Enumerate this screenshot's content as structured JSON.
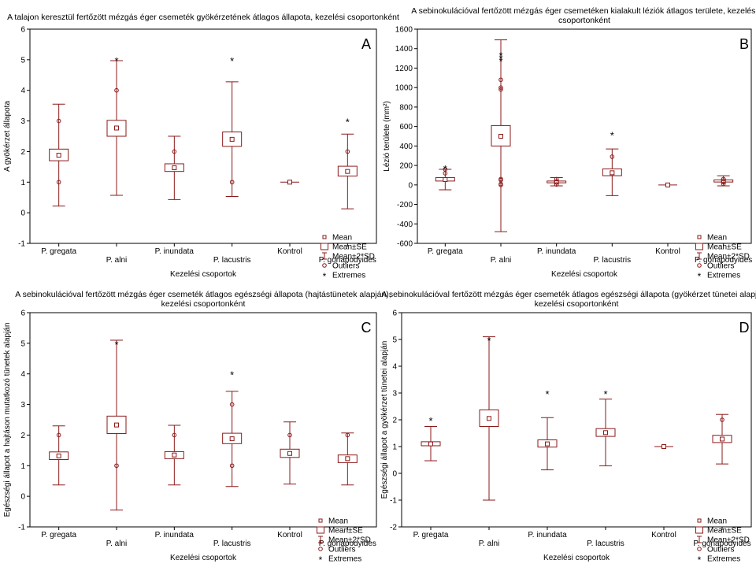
{
  "legend_labels": [
    "Mean",
    "Mean±SE",
    "Mean±2*SD",
    "Outliers",
    "Extremes"
  ],
  "colors": {
    "plot": "#8b1a1a",
    "axis": "#000000",
    "background": "#ffffff"
  },
  "chart_data": [
    {
      "type": "box",
      "panel_letter": "A",
      "title_lines": [
        "A talajon keresztül fertőzött mézgás éger csemeték gyökérzetének átlagos állapota, kezelési csoportonként"
      ],
      "xlabel": "Kezelési csoportok",
      "ylabel": "A gyökérzet állapota",
      "ylim": [
        -1,
        6
      ],
      "yticks": [
        -1,
        0,
        1,
        2,
        3,
        4,
        5,
        6
      ],
      "categories": [
        "P. gregata",
        "P. alni",
        "P. inundata",
        "P. lacustris",
        "Kontrol",
        "P. gonapodyides"
      ],
      "series": [
        {
          "name": "P. gregata",
          "mean": 1.88,
          "se": [
            1.7,
            2.08
          ],
          "sd2": [
            0.22,
            3.55
          ],
          "outliers": [
            1,
            3
          ],
          "extremes": []
        },
        {
          "name": "P. alni",
          "mean": 2.77,
          "se": [
            2.5,
            3.02
          ],
          "sd2": [
            0.57,
            4.97
          ],
          "outliers": [
            4
          ],
          "extremes": [
            5
          ]
        },
        {
          "name": "P. inundata",
          "mean": 1.47,
          "se": [
            1.35,
            1.6
          ],
          "sd2": [
            0.43,
            2.5
          ],
          "outliers": [
            2
          ],
          "extremes": []
        },
        {
          "name": "P. lacustris",
          "mean": 2.4,
          "se": [
            2.17,
            2.64
          ],
          "sd2": [
            0.53,
            4.28
          ],
          "outliers": [
            1
          ],
          "extremes": [
            5
          ]
        },
        {
          "name": "Kontrol",
          "mean": 1,
          "se": [
            1,
            1
          ],
          "sd2": [
            1,
            1
          ],
          "outliers": [],
          "extremes": []
        },
        {
          "name": "P. gonapodyides",
          "mean": 1.35,
          "se": [
            1.2,
            1.52
          ],
          "sd2": [
            0.13,
            2.57
          ],
          "outliers": [
            2
          ],
          "extremes": [
            3
          ]
        }
      ]
    },
    {
      "type": "box",
      "panel_letter": "B",
      "title_lines": [
        "A sebinokulációval fertőzött mézgás éger csemetéken kialakult léziók átlagos területe, kezelési",
        "csoportonként"
      ],
      "xlabel": "Kezelési csoportok",
      "ylabel": "Lézió területe (mm²)",
      "ylim": [
        -600,
        1600
      ],
      "yticks": [
        -600,
        -400,
        -200,
        0,
        200,
        400,
        600,
        800,
        1000,
        1200,
        1400,
        1600
      ],
      "categories": [
        "P. gregata",
        "P. alni",
        "P. inundata",
        "P. lacustris",
        "Kontrol",
        "P. gonapodyides"
      ],
      "series": [
        {
          "name": "P. gregata",
          "mean": 55,
          "se": [
            40,
            75
          ],
          "sd2": [
            -50,
            160
          ],
          "outliers": [
            120,
            160
          ],
          "extremes": [
            175
          ]
        },
        {
          "name": "P. alni",
          "mean": 500,
          "se": [
            400,
            610
          ],
          "sd2": [
            -480,
            1490
          ],
          "outliers": [
            0,
            10,
            50,
            60,
            980,
            1000,
            1080
          ],
          "extremes": [
            1280,
            1310,
            1340
          ]
        },
        {
          "name": "P. inundata",
          "mean": 30,
          "se": [
            22,
            40
          ],
          "sd2": [
            -10,
            75
          ],
          "outliers": [
            5,
            30,
            60
          ],
          "extremes": []
        },
        {
          "name": "P. lacustris",
          "mean": 125,
          "se": [
            95,
            165
          ],
          "sd2": [
            -110,
            370
          ],
          "outliers": [
            290
          ],
          "extremes": [
            520
          ]
        },
        {
          "name": "Kontrol",
          "mean": 0,
          "se": [
            0,
            0
          ],
          "sd2": [
            0,
            0
          ],
          "outliers": [],
          "extremes": []
        },
        {
          "name": "P. gonapodyides",
          "mean": 40,
          "se": [
            30,
            52
          ],
          "sd2": [
            -10,
            95
          ],
          "outliers": [
            10,
            30,
            60
          ],
          "extremes": []
        }
      ]
    },
    {
      "type": "box",
      "panel_letter": "C",
      "title_lines": [
        "A sebinokulációval fertőzött mézgás éger csemeték átlagos egészségi állapota (hajtástünetek alapján),",
        "kezelési csoportonként"
      ],
      "xlabel": "Kezelési csoportok",
      "ylabel": "Egészségi állapot a hajtáson mutatkozó tünetek alapján",
      "ylim": [
        -1,
        6
      ],
      "yticks": [
        -1,
        0,
        1,
        2,
        3,
        4,
        5,
        6
      ],
      "categories": [
        "P. gregata",
        "P. alni",
        "P. inundata",
        "P. lacustris",
        "Kontrol",
        "P. gonapodyides"
      ],
      "series": [
        {
          "name": "P. gregata",
          "mean": 1.32,
          "se": [
            1.2,
            1.45
          ],
          "sd2": [
            0.37,
            2.3
          ],
          "outliers": [
            2
          ],
          "extremes": []
        },
        {
          "name": "P. alni",
          "mean": 2.33,
          "se": [
            2.05,
            2.62
          ],
          "sd2": [
            -0.45,
            5.1
          ],
          "outliers": [
            1
          ],
          "extremes": [
            5
          ]
        },
        {
          "name": "P. inundata",
          "mean": 1.35,
          "se": [
            1.23,
            1.46
          ],
          "sd2": [
            0.37,
            2.32
          ],
          "outliers": [
            2
          ],
          "extremes": []
        },
        {
          "name": "P. lacustris",
          "mean": 1.88,
          "se": [
            1.72,
            2.06
          ],
          "sd2": [
            0.32,
            3.43
          ],
          "outliers": [
            1,
            3
          ],
          "extremes": [
            4
          ]
        },
        {
          "name": "Kontrol",
          "mean": 1.4,
          "se": [
            1.27,
            1.54
          ],
          "sd2": [
            0.4,
            2.43
          ],
          "outliers": [
            2
          ],
          "extremes": []
        },
        {
          "name": "P. gonapodyides",
          "mean": 1.23,
          "se": [
            1.1,
            1.35
          ],
          "sd2": [
            0.37,
            2.07
          ],
          "outliers": [
            2
          ],
          "extremes": []
        }
      ]
    },
    {
      "type": "box",
      "panel_letter": "D",
      "title_lines": [
        "A sebinokulációval fertőzött mézgás éger csemeték átlagos egészségi állapota (gyökérzet tünetei alapján),",
        "kezelési csoportonként"
      ],
      "xlabel": "Kezelési csoportok",
      "ylabel": "Egészségi állapot a gyökérzet tünetei alapján",
      "ylim": [
        -2,
        6
      ],
      "yticks": [
        -2,
        -1,
        0,
        1,
        2,
        3,
        4,
        5,
        6
      ],
      "categories": [
        "P. gregata",
        "P. alni",
        "P. inundata",
        "P. lacustris",
        "Kontrol",
        "P. gonapodyides"
      ],
      "series": [
        {
          "name": "P. gregata",
          "mean": 1.1,
          "se": [
            1.03,
            1.18
          ],
          "sd2": [
            0.47,
            1.75
          ],
          "outliers": [],
          "extremes": [
            2
          ]
        },
        {
          "name": "P. alni",
          "mean": 2.05,
          "se": [
            1.75,
            2.37
          ],
          "sd2": [
            -1,
            5.1
          ],
          "outliers": [],
          "extremes": [
            5
          ]
        },
        {
          "name": "P. inundata",
          "mean": 1.1,
          "se": [
            0.98,
            1.25
          ],
          "sd2": [
            0.13,
            2.08
          ],
          "outliers": [],
          "extremes": [
            3
          ]
        },
        {
          "name": "P. lacustris",
          "mean": 1.52,
          "se": [
            1.38,
            1.67
          ],
          "sd2": [
            0.28,
            2.77
          ],
          "outliers": [],
          "extremes": [
            3
          ]
        },
        {
          "name": "Kontrol",
          "mean": 1,
          "se": [
            1,
            1
          ],
          "sd2": [
            1,
            1
          ],
          "outliers": [],
          "extremes": []
        },
        {
          "name": "P. gonapodyides",
          "mean": 1.28,
          "se": [
            1.15,
            1.42
          ],
          "sd2": [
            0.35,
            2.2
          ],
          "outliers": [
            2
          ],
          "extremes": []
        }
      ]
    }
  ]
}
